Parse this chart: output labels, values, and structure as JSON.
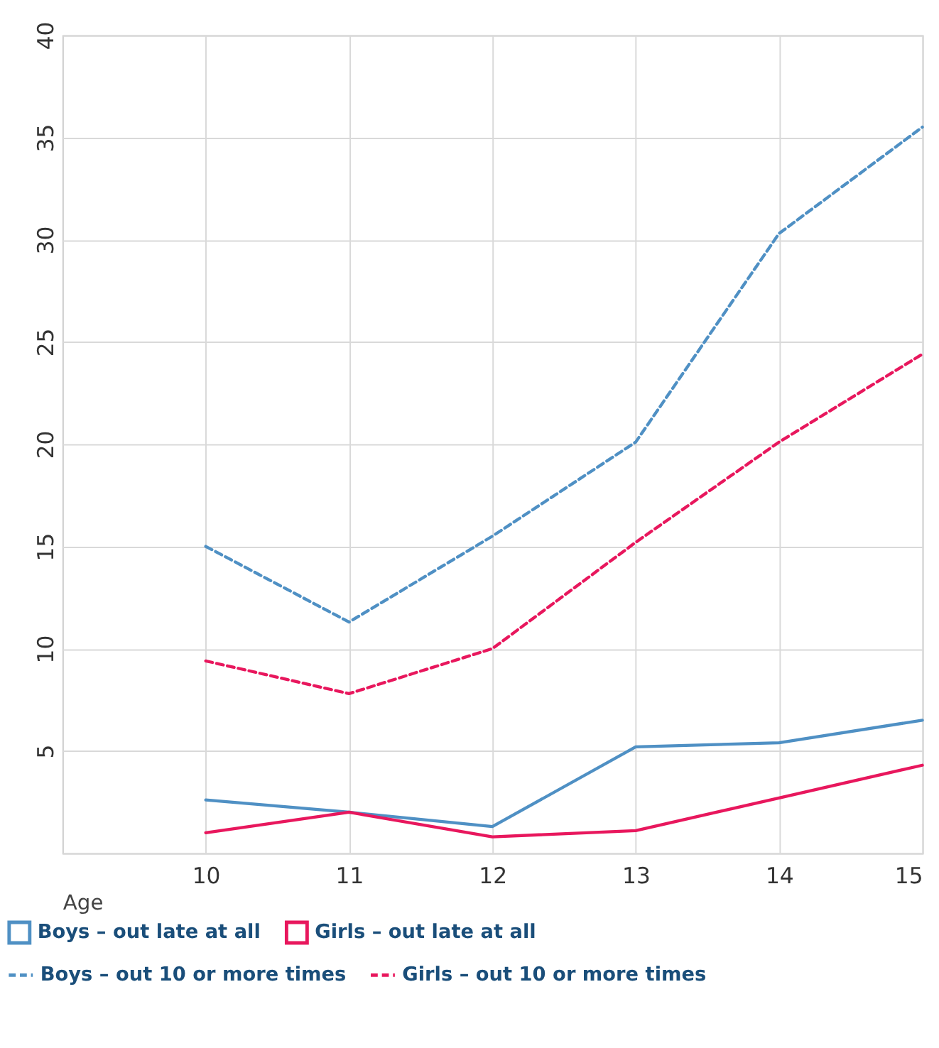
{
  "chart_data": {
    "type": "line",
    "xlabel": "Age",
    "x": [
      10,
      11,
      12,
      13,
      14,
      15
    ],
    "series": [
      {
        "name": "Boys – out late at all",
        "color": "#4f90c4",
        "line_style": "solid",
        "values": [
          2.6,
          2.0,
          1.3,
          5.2,
          5.4,
          6.5
        ]
      },
      {
        "name": "Girls – out late at all",
        "color": "#e8175d",
        "line_style": "solid",
        "values": [
          1.0,
          2.0,
          0.8,
          1.1,
          2.7,
          4.3
        ]
      },
      {
        "name": "Boys – out 10 or more times",
        "color": "#4f90c4",
        "line_style": "dashed",
        "values": [
          15.0,
          11.3,
          15.5,
          20.1,
          30.3,
          35.5
        ]
      },
      {
        "name": "Girls – out 10 or more times",
        "color": "#e8175d",
        "line_style": "dashed",
        "values": [
          9.4,
          7.8,
          10.0,
          15.2,
          20.1,
          24.4
        ]
      }
    ],
    "xlim": [
      9,
      15
    ],
    "xticks": [
      10,
      11,
      12,
      13,
      14,
      15
    ],
    "ylim": [
      0,
      40
    ],
    "yticks": [
      {
        "value": 0,
        "label": null
      },
      5,
      10,
      15,
      20,
      25,
      30,
      35,
      40
    ],
    "grid": true,
    "legend": "bottom",
    "marker": "none"
  }
}
